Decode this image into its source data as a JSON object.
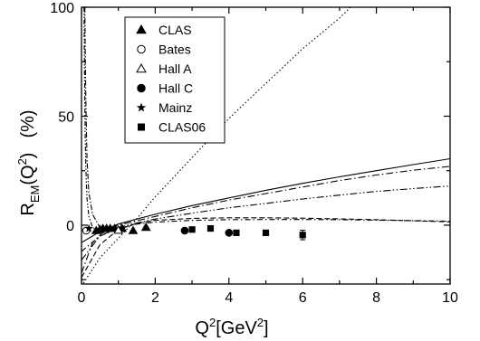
{
  "chart_data": {
    "type": "scatter",
    "xlabel": {
      "main": "Q",
      "sup1": "2",
      "unit": "[GeV",
      "sup2": "2",
      "close": "]"
    },
    "ylabel": {
      "main": "R",
      "sub": "EM",
      "arg": "(Q",
      "sup": "2",
      "close": ")",
      "unit": "(%)"
    },
    "xlim": [
      0,
      10
    ],
    "ylim": [
      -27,
      100
    ],
    "x_ticks": [
      "0",
      "2",
      "4",
      "6",
      "8",
      "10"
    ],
    "y_ticks": [
      "0",
      "50",
      "100"
    ],
    "legend_position": "top-left",
    "series": [
      {
        "name": "CLAS",
        "marker": "triangle-filled",
        "points": [
          [
            0.4,
            -2.5
          ],
          [
            0.5,
            -2
          ],
          [
            0.58,
            -1.5
          ],
          [
            0.68,
            -1.5
          ],
          [
            0.78,
            -1.5
          ],
          [
            0.9,
            -1.5
          ],
          [
            1.1,
            -1.5
          ],
          [
            1.4,
            -2.5
          ],
          [
            1.75,
            -1
          ]
        ]
      },
      {
        "name": "Bates",
        "marker": "circle-open",
        "points": [
          [
            0.127,
            -2.5
          ]
        ]
      },
      {
        "name": "Hall A",
        "marker": "triangle-open",
        "points": [
          [
            1.0,
            -2.3
          ]
        ]
      },
      {
        "name": "Hall C",
        "marker": "circle-filled",
        "points": [
          [
            2.8,
            -2.5
          ],
          [
            4.0,
            -3.5
          ]
        ]
      },
      {
        "name": "Mainz",
        "marker": "star-filled",
        "points": [
          [
            0.2,
            -1.5
          ]
        ]
      },
      {
        "name": "CLAS06",
        "marker": "square-filled",
        "points": [
          [
            3.0,
            -2
          ],
          [
            3.5,
            -1.5
          ],
          [
            4.2,
            -3.5
          ],
          [
            5.0,
            -3.5
          ],
          [
            6.0,
            -4.5
          ]
        ],
        "errors": [
          0.5,
          0.5,
          0.5,
          0.5,
          2.2
        ]
      }
    ],
    "curves": [
      {
        "style": "solid",
        "x": [
          0,
          0.5,
          1,
          1.5,
          2,
          3,
          4,
          5,
          6,
          7,
          8,
          9,
          10
        ],
        "y": [
          -8,
          -3,
          0.5,
          2.8,
          5,
          9,
          12.5,
          16,
          19.2,
          22.2,
          25,
          27.8,
          30.5
        ]
      },
      {
        "style": "dash-dot",
        "x": [
          0,
          0.3,
          0.6,
          1,
          1.5,
          2,
          3,
          4,
          5,
          6,
          7,
          8,
          9,
          10
        ],
        "y": [
          -22,
          -8,
          -3,
          0,
          2,
          4,
          8,
          11.5,
          14.5,
          17.5,
          20.5,
          23,
          25.2,
          27
        ]
      },
      {
        "style": "dash-dot-dot",
        "x": [
          0,
          0.5,
          1,
          1.5,
          2,
          3,
          4,
          5,
          6,
          7,
          8,
          9,
          10
        ],
        "y": [
          -16,
          -5,
          -1,
          1,
          2.8,
          5.5,
          8,
          10,
          12,
          13.8,
          15.5,
          16.8,
          18
        ]
      },
      {
        "style": "dotted",
        "x": [
          0,
          0.5,
          1,
          1.5,
          2,
          2.5,
          3,
          3.5,
          4,
          4.5,
          5,
          5.5,
          6,
          6.5,
          7,
          7.3
        ],
        "y": [
          -28,
          -15,
          -6,
          3,
          13,
          22,
          31,
          40,
          49,
          57,
          65,
          73,
          81,
          88,
          95,
          100
        ]
      },
      {
        "style": "dashed",
        "x": [
          0,
          0.5,
          1,
          1.5,
          2,
          3,
          4,
          5,
          6,
          7,
          8,
          9,
          10
        ],
        "y": [
          -24,
          -9,
          -2,
          0.8,
          2.2,
          3.1,
          3.4,
          3.4,
          3.2,
          2.9,
          2.5,
          2,
          1.5
        ]
      },
      {
        "style": "dash-dot-near-zero",
        "x": [
          0,
          0.5,
          1,
          1.5,
          2,
          3,
          4,
          5,
          6,
          7,
          8,
          9,
          10
        ],
        "y": [
          -12,
          -5,
          -1.5,
          0.5,
          1.4,
          2.2,
          2.5,
          2.6,
          2.6,
          2.5,
          2.3,
          2.1,
          1.8
        ]
      },
      {
        "style": "dash-dot-dot-steep",
        "x": [
          0.07,
          0.08,
          0.1,
          0.12,
          0.15,
          0.2,
          0.3,
          0.5,
          0.8
        ],
        "y": [
          100,
          70,
          40,
          25,
          12,
          4,
          -1,
          -3,
          -3
        ]
      },
      {
        "style": "dash-dot-steep",
        "x": [
          0.09,
          0.1,
          0.12,
          0.15,
          0.2,
          0.3,
          0.5,
          0.8
        ],
        "y": [
          100,
          80,
          55,
          30,
          15,
          5,
          -1,
          -2
        ]
      }
    ]
  }
}
